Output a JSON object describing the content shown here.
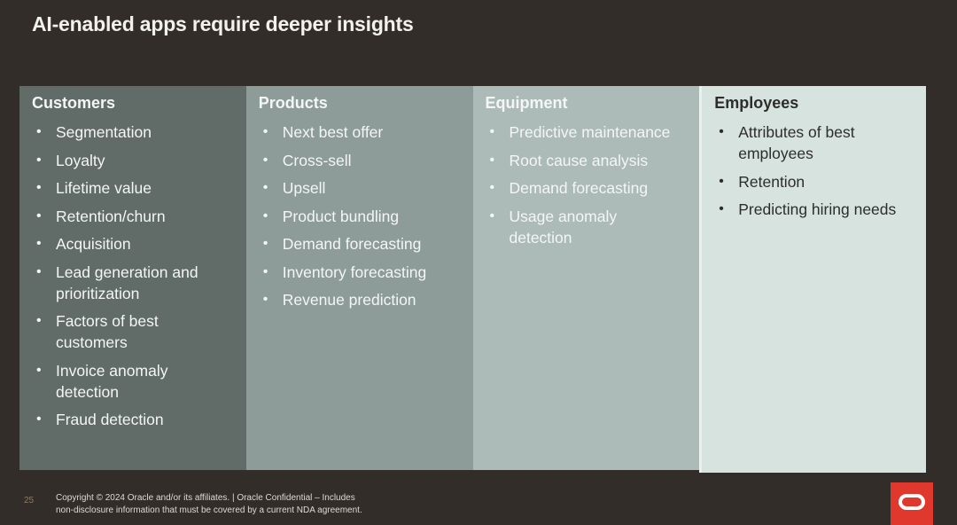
{
  "slide": {
    "title": "AI-enabled apps require deeper insights",
    "page_number": "25",
    "footer": {
      "line1": "Copyright © 2024 Oracle and/or its affiliates. | Oracle Confidential – Includes",
      "line2": "non-disclosure information that must be covered by a current NDA agreement."
    },
    "logo": {
      "name": "oracle-logo",
      "color": "#E0382D"
    }
  },
  "columns": [
    {
      "title": "Customers",
      "bg": "#616B67",
      "text": "#F4F6F5",
      "items": [
        "Segmentation",
        "Loyalty",
        "Lifetime value",
        "Retention/churn",
        "Acquisition",
        "Lead generation and prioritization",
        "Factors of best customers",
        "Invoice anomaly detection",
        "Fraud detection"
      ]
    },
    {
      "title": "Products",
      "bg": "#8D9C98",
      "text": "#F4F6F5",
      "items": [
        "Next best offer",
        "Cross-sell",
        "Upsell",
        "Product bundling",
        "Demand forecasting",
        "Inventory forecasting",
        "Revenue prediction"
      ]
    },
    {
      "title": "Equipment",
      "bg": "#ACBBB7",
      "text": "#F4F6F5",
      "items": [
        "Predictive maintenance",
        "Root cause analysis",
        "Demand forecasting",
        "Usage anomaly detection"
      ]
    },
    {
      "title": "Employees",
      "bg": "#D7E3DF",
      "text": "#2E2D2B",
      "items": [
        "Attributes of best employees",
        "Retention",
        "Predicting hiring needs"
      ]
    }
  ],
  "colors": {
    "background": "#322D28",
    "title_text": "#F3F1EE",
    "page_number": "#8F7D62",
    "footer_text": "#DDD9D3",
    "column_divider": "#E9F0ED"
  }
}
